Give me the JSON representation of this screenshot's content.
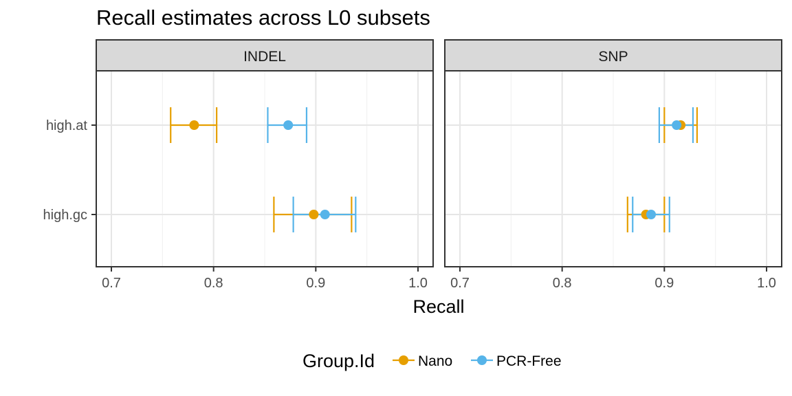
{
  "title": "Recall estimates across L0 subsets",
  "chart_data": {
    "type": "scatter",
    "subtype": "point-range with error bars, faceted",
    "title": "Recall estimates across L0 subsets",
    "xlabel": "Recall",
    "ylabel": "",
    "xlim": [
      0.7,
      1.0
    ],
    "xticks": [
      "0.7",
      "0.8",
      "0.9",
      "1.0"
    ],
    "categories": [
      "high.at",
      "high.gc"
    ],
    "grid": true,
    "legend_position": "bottom",
    "legend_title": "Group.Id",
    "facets": [
      {
        "label": "INDEL",
        "series": [
          {
            "name": "Nano",
            "color": "#E69F00",
            "points": [
              {
                "category": "high.at",
                "value": 0.781,
                "lower": 0.758,
                "upper": 0.803
              },
              {
                "category": "high.gc",
                "value": 0.898,
                "lower": 0.859,
                "upper": 0.935
              }
            ]
          },
          {
            "name": "PCR-Free",
            "color": "#56B4E9",
            "points": [
              {
                "category": "high.at",
                "value": 0.873,
                "lower": 0.853,
                "upper": 0.891
              },
              {
                "category": "high.gc",
                "value": 0.909,
                "lower": 0.878,
                "upper": 0.939
              }
            ]
          }
        ]
      },
      {
        "label": "SNP",
        "series": [
          {
            "name": "Nano",
            "color": "#E69F00",
            "points": [
              {
                "category": "high.at",
                "value": 0.916,
                "lower": 0.9,
                "upper": 0.932
              },
              {
                "category": "high.gc",
                "value": 0.882,
                "lower": 0.864,
                "upper": 0.9
              }
            ]
          },
          {
            "name": "PCR-Free",
            "color": "#56B4E9",
            "points": [
              {
                "category": "high.at",
                "value": 0.912,
                "lower": 0.895,
                "upper": 0.928
              },
              {
                "category": "high.gc",
                "value": 0.887,
                "lower": 0.869,
                "upper": 0.905
              }
            ]
          }
        ]
      }
    ]
  },
  "legend": {
    "title": "Group.Id",
    "items": [
      {
        "label": "Nano",
        "color": "#E69F00"
      },
      {
        "label": "PCR-Free",
        "color": "#56B4E9"
      }
    ]
  }
}
